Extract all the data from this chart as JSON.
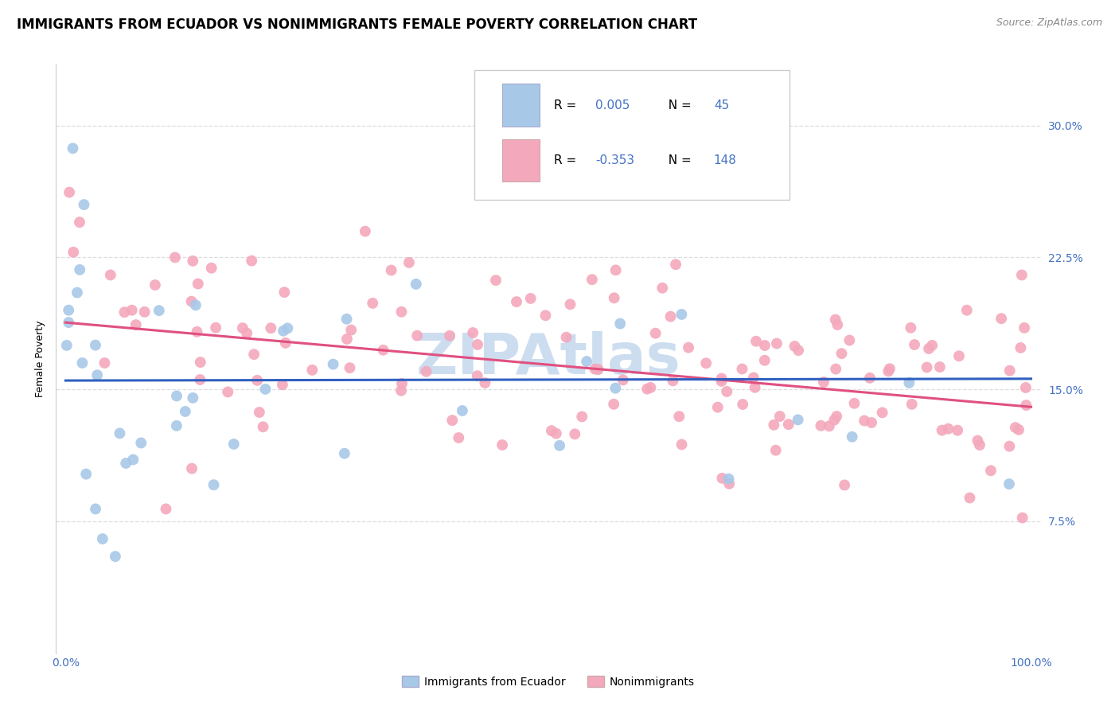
{
  "title": "IMMIGRANTS FROM ECUADOR VS NONIMMIGRANTS FEMALE POVERTY CORRELATION CHART",
  "source": "Source: ZipAtlas.com",
  "ylabel": "Female Poverty",
  "ytick_labels": [
    "7.5%",
    "15.0%",
    "22.5%",
    "30.0%"
  ],
  "ytick_values": [
    0.075,
    0.15,
    0.225,
    0.3
  ],
  "xlim": [
    -0.01,
    1.01
  ],
  "ylim": [
    0.0,
    0.335
  ],
  "color_blue": "#a8c8e8",
  "color_blue_line": "#3060c0",
  "color_pink": "#f4a8bc",
  "color_pink_line": "#e05080",
  "color_grid": "#dddddd",
  "title_fontsize": 12,
  "source_fontsize": 9,
  "axis_label_fontsize": 9,
  "tick_fontsize": 10,
  "tick_color": "#4472c4",
  "background_color": "#ffffff",
  "watermark_text": "ZIPAtlas",
  "watermark_color": "#ccddf0",
  "scatter_size": 100,
  "blue_line_solid": true,
  "blue_r": "0.005",
  "blue_n": "45",
  "pink_r": "-0.353",
  "pink_n": "148",
  "legend_box_color": "#f0f4f8",
  "legend_box_edge": "#cccccc"
}
